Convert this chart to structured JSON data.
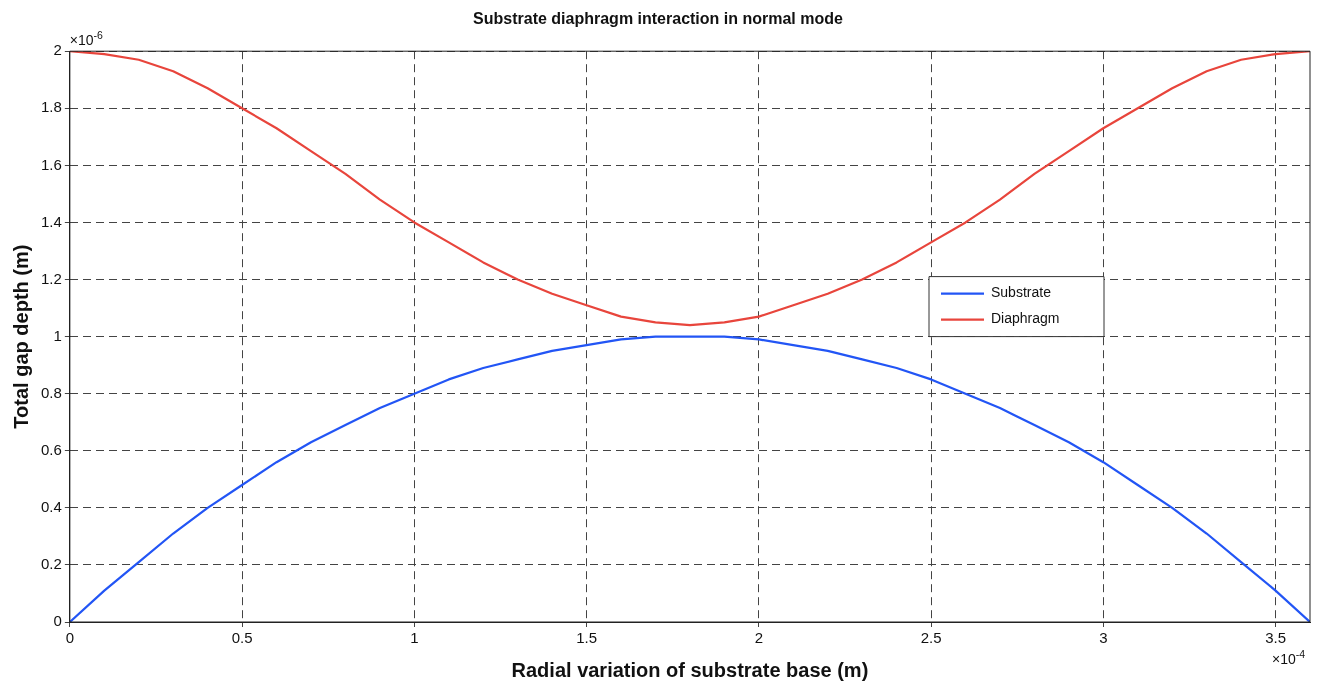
{
  "chart_data": {
    "type": "line",
    "title": "Substrate diaphragm interaction in normal mode",
    "xlabel": "Radial variation of substrate base (m)",
    "ylabel": "Total gap depth (m)",
    "x": [
      0,
      0.1,
      0.2,
      0.3,
      0.4,
      0.5,
      0.6,
      0.7,
      0.8,
      0.9,
      1.0,
      1.1,
      1.2,
      1.3,
      1.4,
      1.5,
      1.6,
      1.7,
      1.8,
      1.9,
      2.0,
      2.1,
      2.2,
      2.3,
      2.4,
      2.5,
      2.6,
      2.7,
      2.8,
      2.9,
      3.0,
      3.1,
      3.2,
      3.3,
      3.4,
      3.5,
      3.6
    ],
    "series": [
      {
        "name": "Substrate",
        "color": "#2255f5",
        "values": [
          0,
          0.11,
          0.21,
          0.31,
          0.4,
          0.48,
          0.56,
          0.63,
          0.69,
          0.75,
          0.8,
          0.85,
          0.89,
          0.92,
          0.95,
          0.97,
          0.99,
          1.0,
          1.0,
          1.0,
          0.99,
          0.97,
          0.95,
          0.92,
          0.89,
          0.85,
          0.8,
          0.75,
          0.69,
          0.63,
          0.56,
          0.48,
          0.4,
          0.31,
          0.21,
          0.11,
          0
        ]
      },
      {
        "name": "Diaphragm",
        "color": "#e8453c",
        "values": [
          2.0,
          1.99,
          1.97,
          1.93,
          1.87,
          1.8,
          1.73,
          1.65,
          1.57,
          1.48,
          1.4,
          1.33,
          1.26,
          1.2,
          1.15,
          1.11,
          1.07,
          1.05,
          1.04,
          1.05,
          1.07,
          1.11,
          1.15,
          1.2,
          1.26,
          1.33,
          1.4,
          1.48,
          1.57,
          1.65,
          1.73,
          1.8,
          1.87,
          1.93,
          1.97,
          1.99,
          2.0
        ]
      }
    ],
    "xlim": [
      0,
      3.6
    ],
    "xticks": [
      0,
      0.5,
      1,
      1.5,
      2,
      2.5,
      3,
      3.5
    ],
    "ylim": [
      0,
      2
    ],
    "yticks": [
      0,
      0.2,
      0.4,
      0.6,
      0.8,
      1,
      1.2,
      1.4,
      1.6,
      1.8,
      2
    ],
    "annotations": [
      "×10$^{-6}$",
      "×10$^{-4}$"
    ],
    "grid": true,
    "line_style": "solid",
    "marker": "none",
    "legend": "right"
  }
}
